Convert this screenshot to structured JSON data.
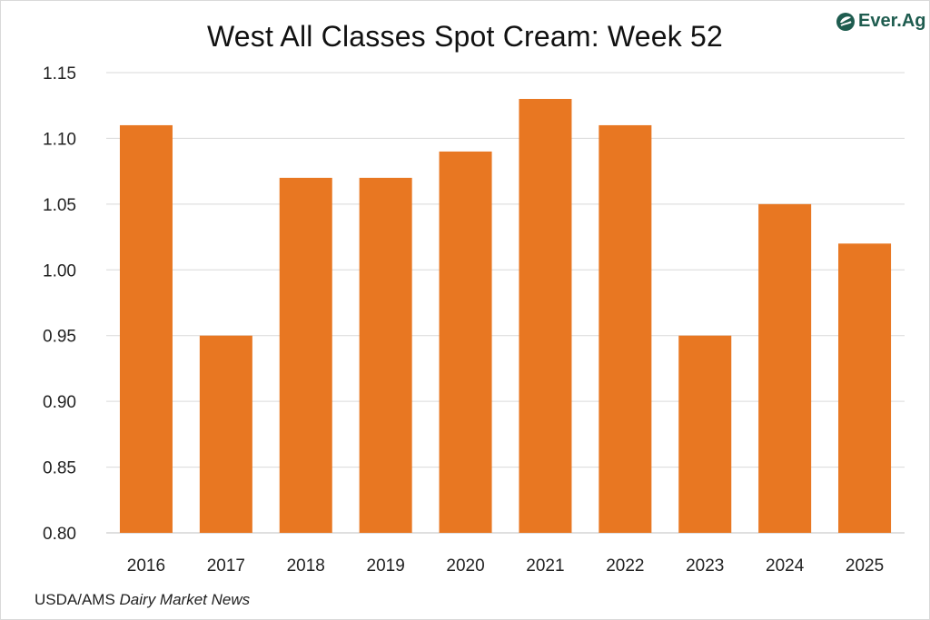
{
  "brand": {
    "logo_text": "Ever.Ag",
    "color": "#1e5c4f"
  },
  "source": {
    "prefix": "USDA/AMS ",
    "italic": "Dairy Market News"
  },
  "chart_data": {
    "type": "bar",
    "title": "West All Classes Spot Cream: Week 52",
    "xlabel": "",
    "ylabel": "",
    "categories": [
      "2016",
      "2017",
      "2018",
      "2019",
      "2020",
      "2021",
      "2022",
      "2023",
      "2024",
      "2025"
    ],
    "values": [
      1.11,
      0.95,
      1.07,
      1.07,
      1.09,
      1.13,
      1.11,
      0.95,
      1.05,
      1.02
    ],
    "ylim": [
      0.8,
      1.15
    ],
    "yticks": [
      "0.80",
      "0.85",
      "0.90",
      "0.95",
      "1.00",
      "1.05",
      "1.10",
      "1.15"
    ],
    "bar_color": "#e87722",
    "grid": true,
    "legend": "none"
  }
}
